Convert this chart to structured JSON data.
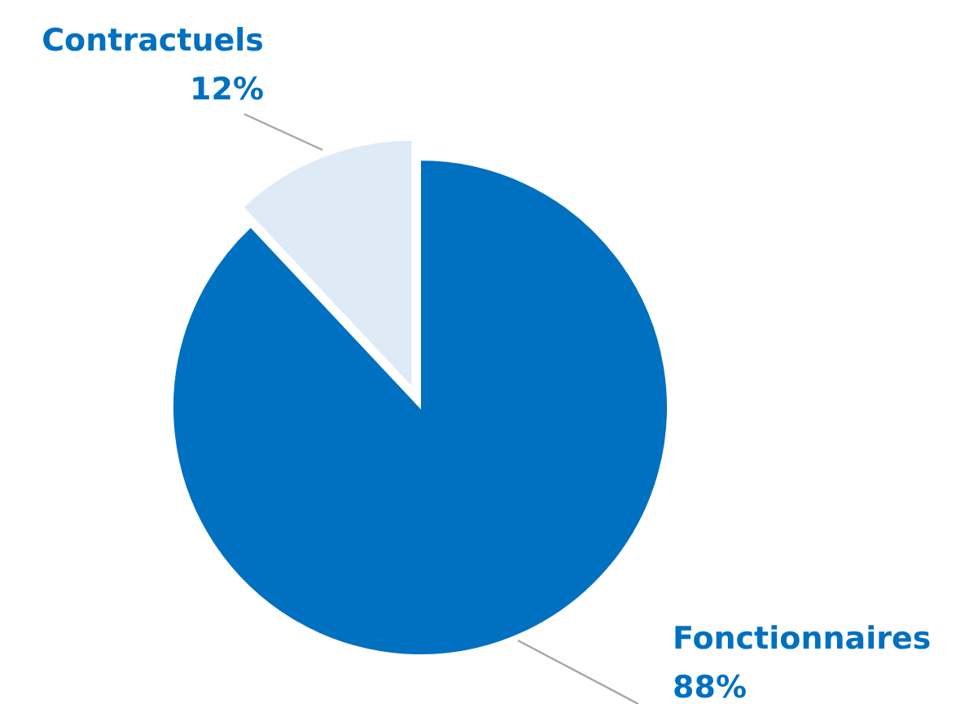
{
  "chart_data": {
    "type": "pie",
    "categories": [
      "Fonctionnaires",
      "Contractuels"
    ],
    "values": [
      88,
      12
    ],
    "colors": [
      "#0070c0",
      "#deeaf6"
    ],
    "value_labels": [
      "88%",
      "12%"
    ]
  }
}
